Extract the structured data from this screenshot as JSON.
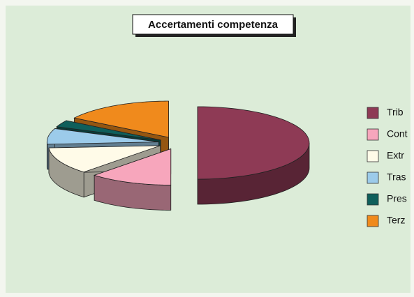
{
  "chart_data": {
    "type": "pie3d",
    "title": "Accertamenti competenza",
    "categories": [
      "Trib",
      "Cont",
      "Extr",
      "Tras",
      "Pres",
      "Terz"
    ],
    "values": [
      50,
      12,
      12,
      7,
      3,
      16
    ],
    "colors": [
      "#8e3a55",
      "#f7a6bc",
      "#fffbe8",
      "#9ccbea",
      "#0f5f5b",
      "#f08a1c"
    ],
    "legend": "right"
  }
}
